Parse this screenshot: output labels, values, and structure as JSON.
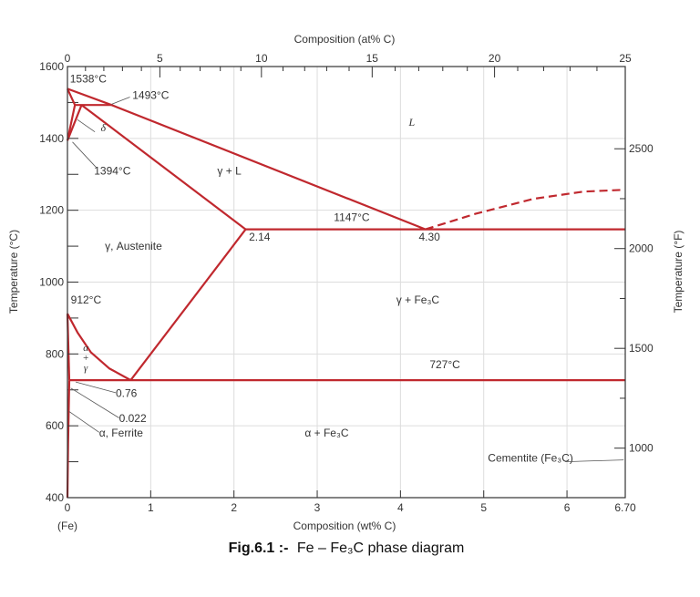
{
  "caption": {
    "bold": "Fig.6.1 :-",
    "rest": "Fe – Fe₃C phase diagram"
  },
  "colors": {
    "phase_line": "#c0282e",
    "axis": "#333333",
    "grid": "#dddddd",
    "text": "#333333"
  },
  "chart_data": {
    "type": "phase-diagram",
    "xlim": [
      0,
      6.7
    ],
    "ylim": [
      400,
      1600
    ],
    "grid": true,
    "axes": {
      "bottom": {
        "label": "Composition (wt% C)",
        "ticks": [
          "0",
          "1",
          "2",
          "3",
          "4",
          "5",
          "6",
          "6.70"
        ],
        "tick_values": [
          0,
          1,
          2,
          3,
          4,
          5,
          6,
          6.7
        ],
        "origin_label": "(Fe)"
      },
      "left": {
        "label": "Temperature (°C)",
        "ticks": [
          "400",
          "600",
          "800",
          "1000",
          "1200",
          "1400",
          "1600"
        ],
        "tick_values": [
          400,
          600,
          800,
          1000,
          1200,
          1400,
          1600
        ]
      },
      "top": {
        "label": "Composition (at% C)",
        "ticks": [
          "0",
          "5",
          "10",
          "15",
          "20",
          "25"
        ],
        "tick_wt": [
          0,
          1.11,
          2.33,
          3.66,
          5.13,
          6.7
        ]
      },
      "right": {
        "label": "Temperature (°F)",
        "ticks": [
          "1000",
          "1500",
          "2000",
          "2500"
        ],
        "tick_values_c": [
          537.8,
          815.6,
          1093.3,
          1371.1
        ]
      }
    },
    "lines": [
      {
        "name": "liquidus-delta",
        "points": [
          [
            0,
            1538
          ],
          [
            0.53,
            1493
          ]
        ]
      },
      {
        "name": "liquidus-main",
        "points": [
          [
            0.53,
            1493
          ],
          [
            4.3,
            1147
          ]
        ]
      },
      {
        "name": "liquidus-cementite",
        "dashed": true,
        "points": [
          [
            4.3,
            1147
          ],
          [
            4.9,
            1190
          ],
          [
            5.6,
            1232
          ],
          [
            6.2,
            1252
          ],
          [
            6.7,
            1257
          ]
        ]
      },
      {
        "name": "solidus-delta",
        "points": [
          [
            0,
            1538
          ],
          [
            0.09,
            1493
          ]
        ]
      },
      {
        "name": "peritectic-line",
        "points": [
          [
            0.09,
            1493
          ],
          [
            0.53,
            1493
          ]
        ]
      },
      {
        "name": "delta-solvus",
        "points": [
          [
            0.09,
            1493
          ],
          [
            0,
            1394
          ]
        ]
      },
      {
        "name": "gamma-delta-boundary",
        "points": [
          [
            0.17,
            1493
          ],
          [
            0,
            1394
          ]
        ]
      },
      {
        "name": "solidus-gamma",
        "points": [
          [
            0.17,
            1493
          ],
          [
            2.14,
            1147
          ]
        ]
      },
      {
        "name": "eutectic-line",
        "points": [
          [
            2.14,
            1147
          ],
          [
            6.7,
            1147
          ]
        ]
      },
      {
        "name": "acm-line",
        "points": [
          [
            2.14,
            1147
          ],
          [
            0.76,
            727
          ]
        ]
      },
      {
        "name": "a3-line",
        "points": [
          [
            0,
            912
          ],
          [
            0.12,
            860
          ],
          [
            0.28,
            805
          ],
          [
            0.5,
            760
          ],
          [
            0.76,
            727
          ]
        ]
      },
      {
        "name": "alpha-gamma-boundary",
        "points": [
          [
            0,
            912
          ],
          [
            0.022,
            727
          ]
        ]
      },
      {
        "name": "eutectoid-line",
        "points": [
          [
            0.022,
            727
          ],
          [
            6.7,
            727
          ]
        ]
      },
      {
        "name": "alpha-solvus",
        "points": [
          [
            0.022,
            727
          ],
          [
            0.008,
            550
          ],
          [
            0,
            400
          ]
        ]
      }
    ],
    "labels": [
      {
        "name": "label-1538",
        "text": "1538°C",
        "x": 0.03,
        "y": 1555
      },
      {
        "name": "label-1493",
        "text": "1493°C",
        "x": 0.78,
        "y": 1510
      },
      {
        "name": "label-delta",
        "text": "δ",
        "x": 0.4,
        "y": 1420
      },
      {
        "name": "label-liquid",
        "text": "L",
        "x": 4.1,
        "y": 1435
      },
      {
        "name": "label-1394",
        "text": "1394°C",
        "x": 0.32,
        "y": 1300
      },
      {
        "name": "label-gamma-l",
        "text": "γ + L",
        "x": 1.8,
        "y": 1300
      },
      {
        "name": "label-1147",
        "text": "1147°C",
        "x": 3.2,
        "y": 1170
      },
      {
        "name": "label-2-14",
        "text": "2.14",
        "x": 2.18,
        "y": 1115
      },
      {
        "name": "label-4-30",
        "text": "4.30",
        "x": 4.22,
        "y": 1115
      },
      {
        "name": "label-austenite",
        "text": "γ, Austenite",
        "x": 0.45,
        "y": 1090
      },
      {
        "name": "label-912",
        "text": "912°C",
        "x": 0.04,
        "y": 940
      },
      {
        "name": "label-gamma-fe3c",
        "text": "γ + Fe₃C",
        "x": 3.95,
        "y": 940
      },
      {
        "name": "label-727",
        "text": "727°C",
        "x": 4.35,
        "y": 760
      },
      {
        "name": "label-0-76",
        "text": "0.76",
        "x": 0.58,
        "y": 680
      },
      {
        "name": "label-0-022",
        "text": "0.022",
        "x": 0.62,
        "y": 610
      },
      {
        "name": "label-ferrite",
        "text": "α, Ferrite",
        "x": 0.38,
        "y": 570
      },
      {
        "name": "label-alpha-fe3c",
        "text": "α + Fe₃C",
        "x": 2.85,
        "y": 570
      },
      {
        "name": "label-cementite",
        "text": "Cementite (Fe₃C)",
        "x": 5.05,
        "y": 500
      }
    ],
    "stacked_label": {
      "name": "label-alpha-gamma",
      "lines": [
        "α",
        "+",
        "γ"
      ],
      "x": 0.22,
      "y": 808
    }
  }
}
